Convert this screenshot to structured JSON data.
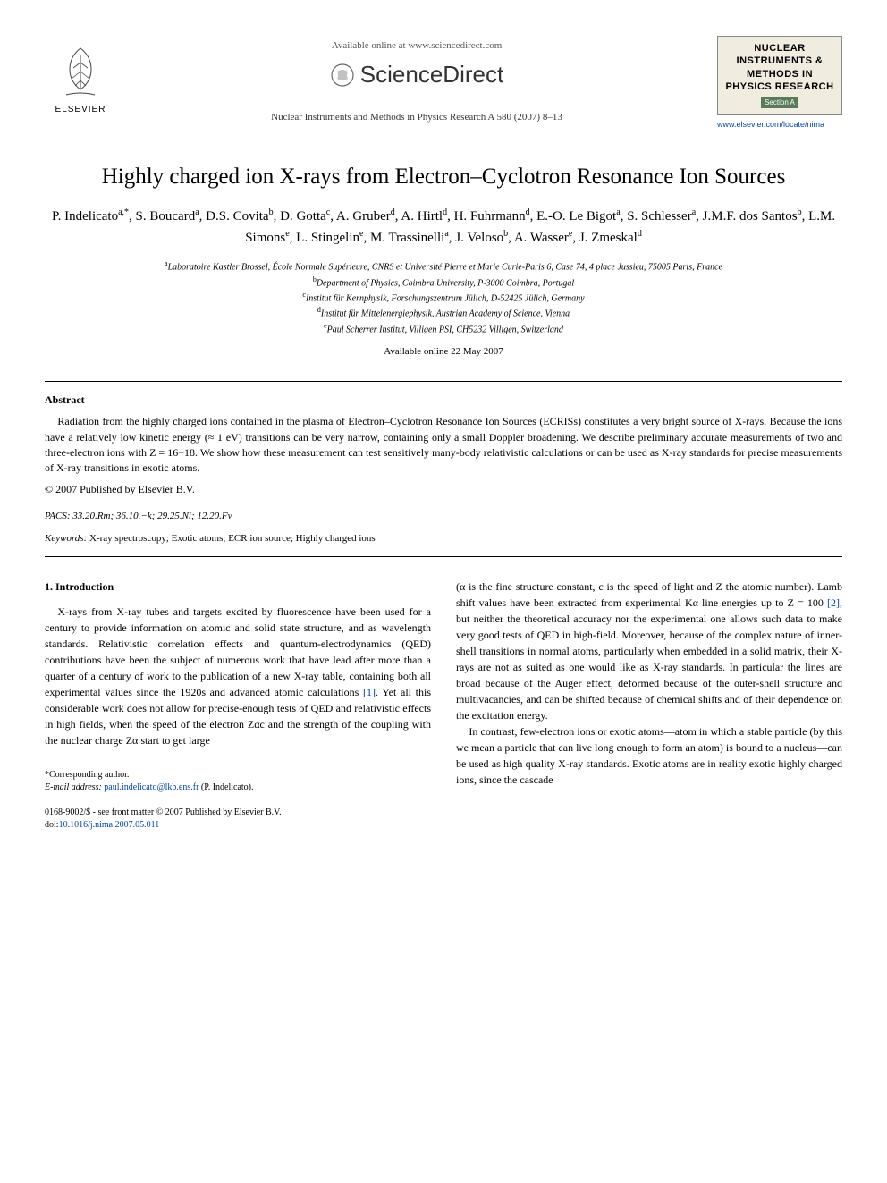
{
  "header": {
    "publisher_name": "ELSEVIER",
    "avail_online": "Available online at www.sciencedirect.com",
    "sciencedirect_text": "ScienceDirect",
    "citation": "Nuclear Instruments and Methods in Physics Research A 580 (2007) 8–13",
    "journal_box_title": "NUCLEAR INSTRUMENTS & METHODS IN PHYSICS RESEARCH",
    "journal_box_section": "Section A",
    "journal_link": "www.elsevier.com/locate/nima"
  },
  "paper": {
    "title": "Highly charged ion X-rays from Electron–Cyclotron Resonance Ion Sources",
    "authors_html": "P. Indelicato<sup>a,*</sup>, S. Boucard<sup>a</sup>, D.S. Covita<sup>b</sup>, D. Gotta<sup>c</sup>, A. Gruber<sup>d</sup>, A. Hirtl<sup>d</sup>, H. Fuhrmann<sup>d</sup>, E.-O. Le Bigot<sup>a</sup>, S. Schlesser<sup>a</sup>, J.M.F. dos Santos<sup>b</sup>, L.M. Simons<sup>e</sup>, L. Stingelin<sup>e</sup>, M. Trassinelli<sup>a</sup>, J. Veloso<sup>b</sup>, A. Wasser<sup>e</sup>, J. Zmeskal<sup>d</sup>",
    "affiliations": [
      {
        "sup": "a",
        "text": "Laboratoire Kastler Brossel, École Normale Supérieure, CNRS et Université Pierre et Marie Curie-Paris 6, Case 74, 4 place Jussieu, 75005 Paris, France"
      },
      {
        "sup": "b",
        "text": "Department of Physics, Coimbra University, P-3000 Coimbra, Portugal"
      },
      {
        "sup": "c",
        "text": "Institut für Kernphysik, Forschungszentrum Jülich, D-52425 Jülich, Germany"
      },
      {
        "sup": "d",
        "text": "Institut für Mittelenergiephysik, Austrian Academy of Science, Vienna"
      },
      {
        "sup": "e",
        "text": "Paul Scherrer Institut, Villigen PSI, CH5232 Villigen, Switzerland"
      }
    ],
    "avail_date": "Available online 22 May 2007"
  },
  "abstract": {
    "label": "Abstract",
    "text": "Radiation from the highly charged ions contained in the plasma of Electron–Cyclotron Resonance Ion Sources (ECRISs) constitutes a very bright source of X-rays. Because the ions have a relatively low kinetic energy (≈ 1 eV) transitions can be very narrow, containing only a small Doppler broadening. We describe preliminary accurate measurements of two and three-electron ions with Z = 16−18. We show how these measurement can test sensitively many-body relativistic calculations or can be used as X-ray standards for precise measurements of X-ray transitions in exotic atoms.",
    "copyright": "© 2007 Published by Elsevier B.V."
  },
  "pacs": {
    "label": "PACS:",
    "value": "33.20.Rm; 36.10.−k; 29.25.Ni; 12.20.Fv"
  },
  "keywords": {
    "label": "Keywords:",
    "value": "X-ray spectroscopy; Exotic atoms; ECR ion source; Highly charged ions"
  },
  "section1": {
    "heading": "1. Introduction",
    "col1_p1": "X-rays from X-ray tubes and targets excited by fluorescence have been used for a century to provide information on atomic and solid state structure, and as wavelength standards. Relativistic correlation effects and quantum-electrodynamics (QED) contributions have been the subject of numerous work that have lead after more than a quarter of a century of work to the publication of a new X-ray table, containing both all experimental values since the 1920s and advanced atomic calculations ",
    "col1_ref1": "[1]",
    "col1_p1b": ". Yet all this considerable work does not allow for precise-enough tests of QED and relativistic effects in high fields, when the speed of the electron Zαc and the strength of the coupling with the nuclear charge Zα start to get large",
    "col2_p1a": "(α is the fine structure constant, c is the speed of light and Z the atomic number). Lamb shift values have been extracted from experimental Kα line energies up to Z = 100 ",
    "col2_ref2": "[2]",
    "col2_p1b": ", but neither the theoretical accuracy nor the experimental one allows such data to make very good tests of QED in high-field. Moreover, because of the complex nature of inner-shell transitions in normal atoms, particularly when embedded in a solid matrix, their X-rays are not as suited as one would like as X-ray standards. In particular the lines are broad because of the Auger effect, deformed because of the outer-shell structure and multivacancies, and can be shifted because of chemical shifts and of their dependence on the excitation energy.",
    "col2_p2": "In contrast, few-electron ions or exotic atoms—atom in which a stable particle (by this we mean a particle that can live long enough to form an atom) is bound to a nucleus—can be used as high quality X-ray standards. Exotic atoms are in reality exotic highly charged ions, since the cascade"
  },
  "footnote": {
    "corr": "*Corresponding author.",
    "email_label": "E-mail address:",
    "email": "paul.indelicato@lkb.ens.fr",
    "email_name": "(P. Indelicato)."
  },
  "footer": {
    "line1": "0168-9002/$ - see front matter © 2007 Published by Elsevier B.V.",
    "doi_label": "doi:",
    "doi": "10.1016/j.nima.2007.05.011"
  },
  "colors": {
    "link": "#0645ad",
    "journal_box_bg": "#f0ece0",
    "section_a_bg": "#5a7a5a"
  }
}
